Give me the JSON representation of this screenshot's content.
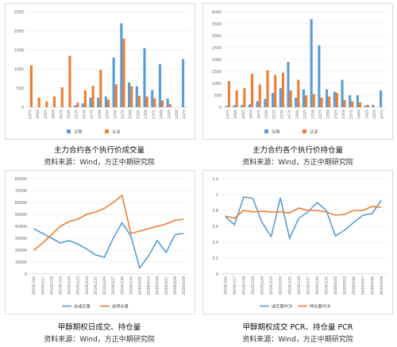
{
  "colors": {
    "blue": "#5b9bd5",
    "orange": "#ed7d31",
    "grid": "#e3e3e3",
    "axis": "#bfbfbf",
    "tick": "#666666"
  },
  "captions": {
    "c1": "主力合约各个执行价成交量",
    "c2": "主力合约各个执行价持仓量",
    "c3": "甲醇期权日成交、持仓量",
    "c4": "甲醇期权成交 PCR、持仓量 PCR",
    "source": "资料来源：Wind，方正中期研究院"
  },
  "chart_data": [
    {
      "type": "bar",
      "title": "",
      "categories": [
        "1975",
        "2000",
        "2025",
        "2050",
        "2075",
        "2100",
        "2125",
        "2150",
        "2175",
        "2200",
        "2225",
        "2250",
        "2275",
        "2300",
        "2325",
        "2350",
        "2375",
        "2400",
        "2425",
        "2450",
        "2475"
      ],
      "series": [
        {
          "name": "认购",
          "values": [
            0,
            0,
            0,
            0,
            0,
            0,
            50,
            100,
            250,
            250,
            280,
            1300,
            2200,
            650,
            550,
            1550,
            450,
            1130,
            230,
            0,
            1260
          ]
        },
        {
          "name": "认沽",
          "values": [
            1100,
            250,
            150,
            280,
            520,
            1350,
            120,
            440,
            560,
            980,
            200,
            600,
            1800,
            550,
            300,
            280,
            230,
            180,
            80,
            0,
            0
          ]
        }
      ],
      "ylim": [
        0,
        2500
      ],
      "yticks": [
        0,
        500,
        1000,
        1500,
        2000,
        2500
      ],
      "legend": "bottom"
    },
    {
      "type": "bar",
      "title": "",
      "categories": [
        "1975",
        "2000",
        "2025",
        "2050",
        "2075",
        "2100",
        "2125",
        "2150",
        "2175",
        "2200",
        "2225",
        "2250",
        "2275",
        "2300",
        "2325",
        "2350",
        "2375",
        "2400",
        "2425",
        "2450",
        "2475"
      ],
      "series": [
        {
          "name": "认购",
          "values": [
            60,
            80,
            90,
            120,
            250,
            350,
            600,
            800,
            1900,
            400,
            750,
            3700,
            2600,
            750,
            650,
            1150,
            500,
            500,
            60,
            100,
            700
          ]
        },
        {
          "name": "认沽",
          "values": [
            1100,
            700,
            800,
            1400,
            950,
            1550,
            1350,
            1450,
            700,
            1150,
            500,
            550,
            400,
            450,
            600,
            300,
            250,
            200,
            100,
            0,
            0
          ]
        }
      ],
      "ylim": [
        0,
        4000
      ],
      "yticks": [
        0,
        500,
        1000,
        1500,
        2000,
        2500,
        3000,
        3500,
        4000
      ],
      "legend": "bottom"
    },
    {
      "type": "line",
      "title": "",
      "x": [
        "20191216",
        "20191217",
        "20191218",
        "20191219",
        "20191220",
        "20191223",
        "20191224",
        "20191225",
        "20191226",
        "20191227",
        "20191230",
        "20191231",
        "20200102",
        "20200103",
        "20200106",
        "20200107",
        "20200108",
        "20200109"
      ],
      "series": [
        {
          "name": "总成交量",
          "values": [
            38000,
            34000,
            30000,
            26000,
            28000,
            25000,
            21000,
            16000,
            14000,
            30000,
            43000,
            32000,
            5000,
            15000,
            28000,
            18000,
            33000,
            34000
          ]
        },
        {
          "name": "总持仓量",
          "values": [
            20000,
            26000,
            33000,
            40000,
            44000,
            46000,
            50000,
            52000,
            55000,
            60000,
            66000,
            34000,
            36000,
            38000,
            40000,
            42000,
            45000,
            46000
          ]
        }
      ],
      "ylim": [
        0,
        80000
      ],
      "yticks": [
        0,
        10000,
        20000,
        30000,
        40000,
        50000,
        60000,
        70000,
        80000
      ],
      "legend": "bottom"
    },
    {
      "type": "line",
      "title": "",
      "x": [
        "20191216",
        "20191217",
        "20191218",
        "20191219",
        "20191220",
        "20191223",
        "20191224",
        "20191225",
        "20191226",
        "20191227",
        "20191230",
        "20191231",
        "20200102",
        "20200103",
        "20200106",
        "20200107",
        "20200108",
        "20200109"
      ],
      "series": [
        {
          "name": "成交量PCR",
          "values": [
            0.72,
            0.62,
            0.97,
            0.95,
            0.65,
            0.47,
            0.96,
            0.45,
            0.7,
            0.78,
            0.9,
            0.8,
            0.48,
            0.55,
            0.65,
            0.74,
            0.76,
            0.93
          ]
        },
        {
          "name": "持仓量PCR",
          "values": [
            0.73,
            0.7,
            0.8,
            0.78,
            0.79,
            0.78,
            0.78,
            0.77,
            0.83,
            0.8,
            0.8,
            0.78,
            0.74,
            0.75,
            0.8,
            0.8,
            0.85,
            0.84
          ]
        }
      ],
      "ylim": [
        0,
        1.2
      ],
      "yticks": [
        0,
        0.2,
        0.4,
        0.6,
        0.8,
        1,
        1.2
      ],
      "legend": "bottom"
    }
  ]
}
